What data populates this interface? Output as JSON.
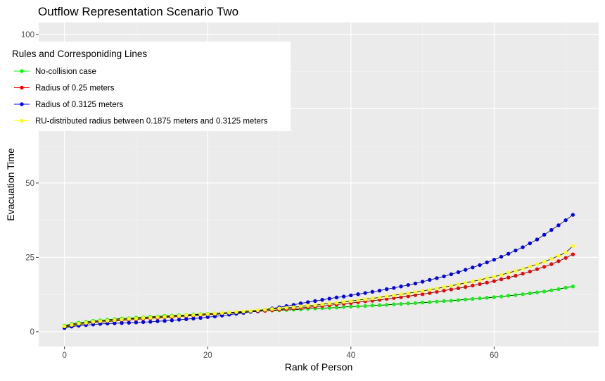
{
  "chart_data": {
    "type": "line",
    "title": "Outflow Representation Scenario Two",
    "xlabel": "Rank of Person",
    "ylabel": "Evacuation Time",
    "xlim": [
      -3.6,
      74.6
    ],
    "ylim": [
      -5,
      104
    ],
    "x_ticks": [
      0,
      20,
      40,
      60
    ],
    "y_ticks": [
      0,
      25,
      50,
      100
    ],
    "x_tick_labels": [
      "0",
      "20",
      "40",
      "60"
    ],
    "y_tick_labels": [
      "0",
      "25",
      "50",
      "100"
    ],
    "grid": true,
    "legend": {
      "title": "Rules and Corresponiding Lines",
      "placement": "top-left"
    },
    "n_points": 72,
    "series": [
      {
        "name": "No-collision case",
        "color": "#00ff00",
        "values": [
          2.0,
          2.6,
          3.0,
          3.3,
          3.6,
          3.8,
          4.0,
          4.2,
          4.4,
          4.5,
          4.7,
          4.8,
          5.0,
          5.1,
          5.3,
          5.4,
          5.5,
          5.6,
          5.8,
          5.9,
          6.0,
          6.1,
          6.2,
          6.4,
          6.5,
          6.6,
          6.7,
          6.8,
          7.0,
          7.1,
          7.2,
          7.3,
          7.4,
          7.5,
          7.7,
          7.8,
          7.9,
          8.0,
          8.1,
          8.3,
          8.4,
          8.5,
          8.6,
          8.8,
          8.9,
          9.0,
          9.2,
          9.3,
          9.5,
          9.6,
          9.8,
          9.9,
          10.1,
          10.3,
          10.4,
          10.6,
          10.8,
          11.0,
          11.2,
          11.4,
          11.6,
          11.8,
          12.1,
          12.3,
          12.6,
          12.9,
          13.2,
          13.5,
          13.9,
          14.3,
          14.8,
          15.2
        ]
      },
      {
        "name": "Radius of 0.25 meters",
        "color": "#ff0000",
        "values": [
          1.5,
          2.0,
          2.4,
          2.7,
          3.0,
          3.2,
          3.4,
          3.6,
          3.8,
          4.0,
          4.1,
          4.3,
          4.5,
          4.6,
          4.8,
          4.9,
          5.1,
          5.2,
          5.4,
          5.5,
          5.7,
          5.8,
          6.0,
          6.2,
          6.3,
          6.5,
          6.7,
          6.8,
          7.0,
          7.2,
          7.4,
          7.6,
          7.8,
          8.0,
          8.2,
          8.4,
          8.6,
          8.9,
          9.1,
          9.4,
          9.6,
          9.9,
          10.2,
          10.4,
          10.7,
          11.0,
          11.3,
          11.6,
          11.9,
          12.3,
          12.6,
          13.0,
          13.4,
          13.8,
          14.2,
          14.6,
          15.0,
          15.5,
          16.0,
          16.5,
          17.0,
          17.6,
          18.2,
          18.8,
          19.5,
          20.2,
          21.0,
          21.8,
          22.7,
          23.7,
          24.8,
          26.0
        ]
      },
      {
        "name": "Radius of 0.3125 meters",
        "color": "#0000ff",
        "values": [
          1.2,
          1.7,
          2.0,
          2.2,
          2.4,
          2.6,
          2.7,
          2.8,
          2.9,
          3.0,
          3.1,
          3.2,
          3.3,
          3.5,
          3.6,
          3.8,
          4.0,
          4.2,
          4.4,
          4.6,
          4.9,
          5.1,
          5.4,
          5.7,
          6.0,
          6.3,
          6.7,
          7.0,
          7.4,
          7.8,
          8.2,
          8.6,
          9.0,
          9.5,
          9.9,
          10.3,
          10.7,
          11.1,
          11.5,
          11.8,
          12.2,
          12.6,
          13.0,
          13.4,
          13.8,
          14.3,
          14.7,
          15.2,
          15.7,
          16.2,
          16.8,
          17.4,
          18.0,
          18.6,
          19.3,
          20.0,
          20.8,
          21.6,
          22.4,
          23.3,
          24.2,
          25.2,
          26.2,
          27.3,
          28.4,
          29.7,
          31.0,
          32.6,
          34.2,
          35.8,
          37.5,
          39.3
        ]
      },
      {
        "name": "RU-distributed radius between 0.1875 meters and 0.3125 meters",
        "color": "#ffff00",
        "values": [
          1.8,
          2.3,
          2.7,
          3.0,
          3.3,
          3.5,
          3.7,
          3.9,
          4.1,
          4.3,
          4.4,
          4.6,
          4.7,
          4.9,
          5.0,
          5.2,
          5.3,
          5.5,
          5.6,
          5.8,
          5.9,
          6.1,
          6.3,
          6.4,
          6.6,
          6.8,
          7.0,
          7.2,
          7.4,
          7.6,
          7.8,
          8.0,
          8.2,
          8.5,
          8.7,
          8.9,
          9.2,
          9.5,
          9.7,
          10.0,
          10.3,
          10.6,
          10.9,
          11.2,
          11.5,
          11.9,
          12.2,
          12.6,
          12.9,
          13.3,
          13.7,
          14.1,
          14.5,
          15.0,
          15.4,
          15.9,
          16.4,
          16.9,
          17.4,
          18.0,
          18.5,
          19.1,
          19.8,
          20.4,
          21.1,
          21.9,
          22.7,
          23.5,
          24.5,
          25.5,
          26.6,
          28.8
        ]
      }
    ]
  }
}
